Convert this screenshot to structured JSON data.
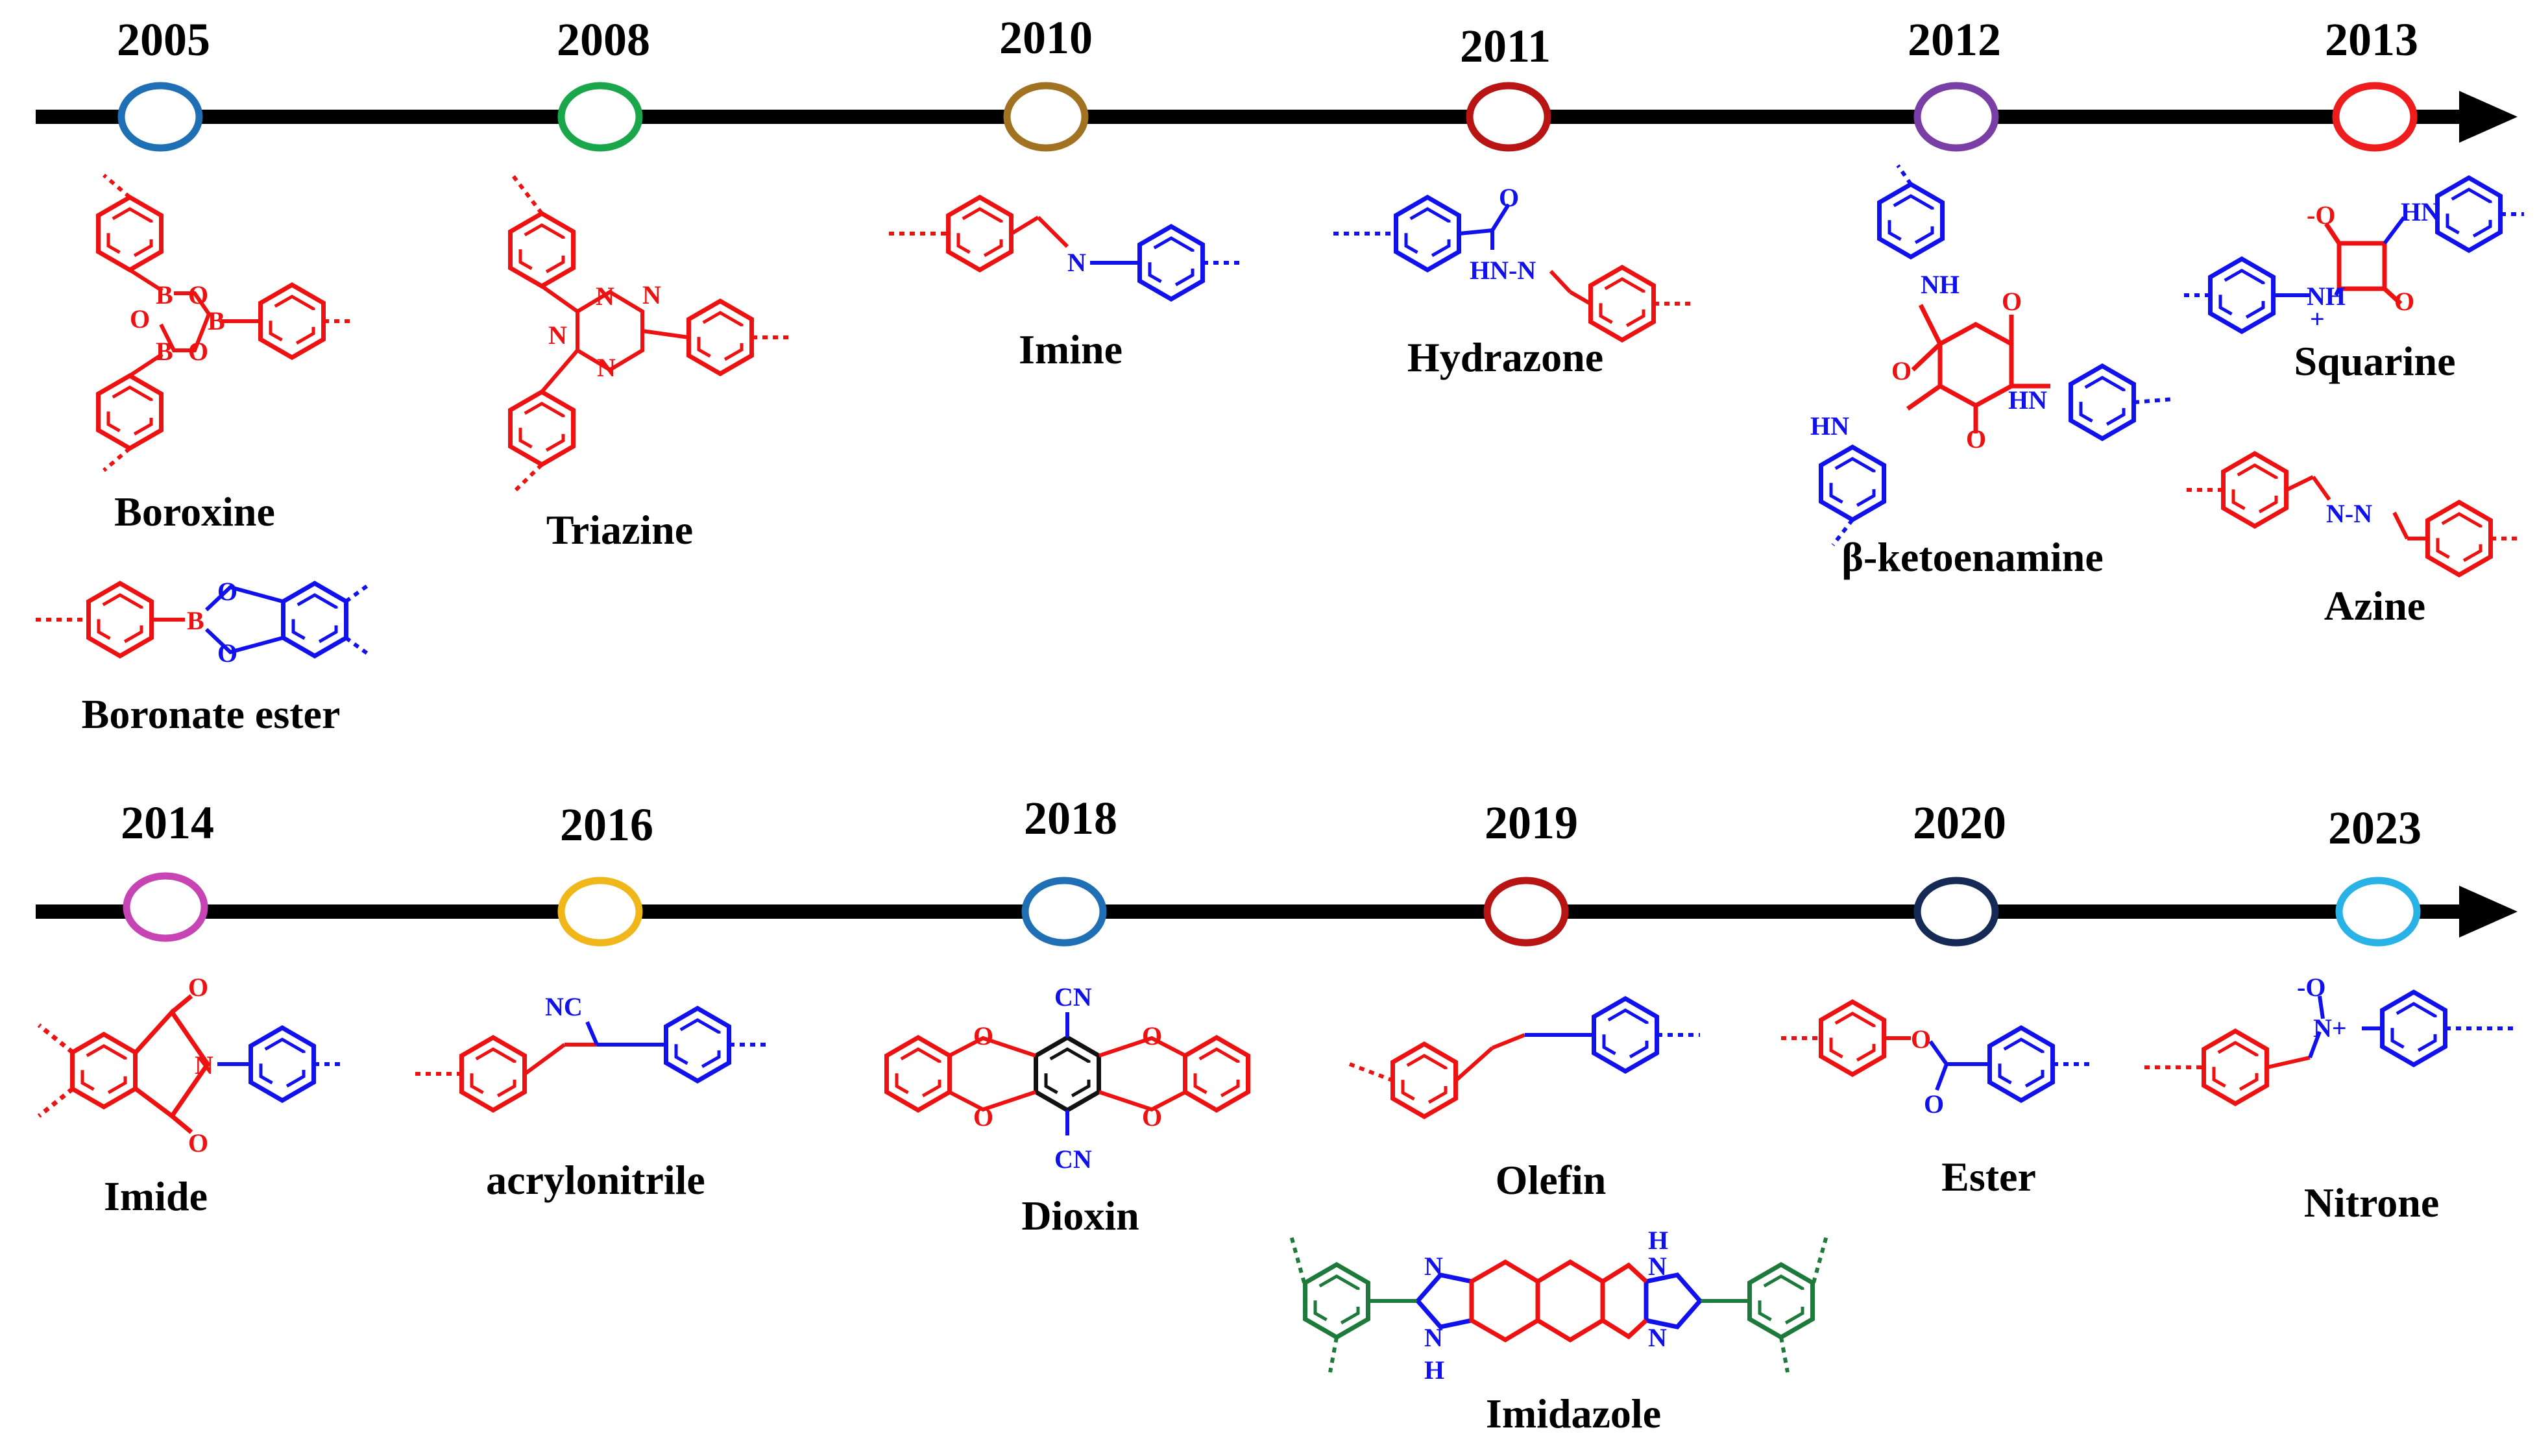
{
  "colors": {
    "red": "#ee1111",
    "blue": "#1111ee",
    "green": "#1e7a3a",
    "axis": "#000000"
  },
  "timelines": [
    {
      "events": [
        {
          "year": "2005",
          "circle_color": "#1f6fb5",
          "labels": [
            "Boroxine",
            "Boronate ester"
          ]
        },
        {
          "year": "2008",
          "circle_color": "#1aa64a",
          "labels": [
            "Triazine"
          ]
        },
        {
          "year": "2010",
          "circle_color": "#a07222",
          "labels": [
            "Imine"
          ]
        },
        {
          "year": "2011",
          "circle_color": "#b81414",
          "labels": [
            "Hydrazone"
          ]
        },
        {
          "year": "2012",
          "circle_color": "#7a3fa6",
          "labels": [
            "β-ketoenamine"
          ]
        },
        {
          "year": "2013",
          "circle_color": "#ee1c1c",
          "labels": [
            "Squarine",
            "Azine"
          ]
        }
      ]
    },
    {
      "events": [
        {
          "year": "2014",
          "circle_color": "#c744b5",
          "labels": [
            "Imide"
          ]
        },
        {
          "year": "2016",
          "circle_color": "#f0b61a",
          "labels": [
            "acrylonitrile"
          ]
        },
        {
          "year": "2018",
          "circle_color": "#1f6fb5",
          "labels": [
            "Dioxin"
          ]
        },
        {
          "year": "2019",
          "circle_color": "#b81414",
          "labels": [
            "Olefin",
            "Imidazole"
          ]
        },
        {
          "year": "2020",
          "circle_color": "#152a55",
          "labels": [
            "Ester"
          ]
        },
        {
          "year": "2023",
          "circle_color": "#28b2e6",
          "labels": [
            "Nitrone"
          ]
        }
      ]
    }
  ],
  "atoms": {
    "B": "B",
    "O": "O",
    "N": "N",
    "NH": "NH",
    "HN": "HN",
    "H": "H",
    "CN": "CN",
    "NC": "NC",
    "HN-N": "HN-N",
    "N-N": "N-N",
    "Nplus": "N+",
    "Ominus": "-O",
    "plus": "+"
  }
}
